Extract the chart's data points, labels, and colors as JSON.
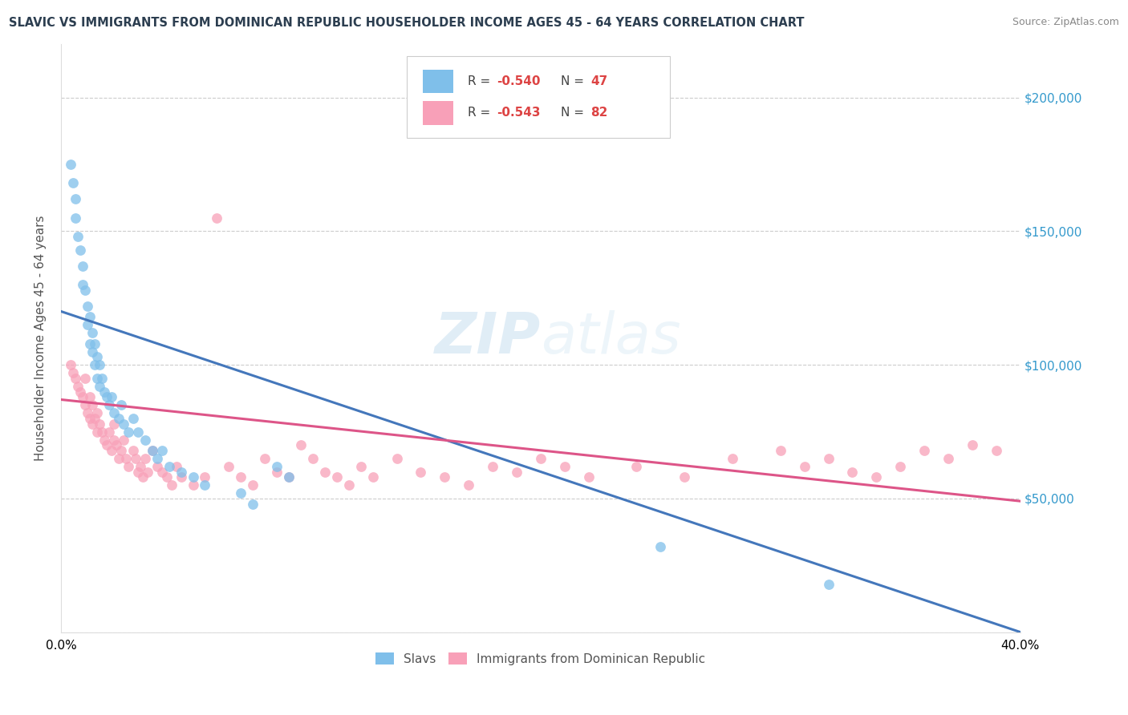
{
  "title": "SLAVIC VS IMMIGRANTS FROM DOMINICAN REPUBLIC HOUSEHOLDER INCOME AGES 45 - 64 YEARS CORRELATION CHART",
  "source": "Source: ZipAtlas.com",
  "ylabel": "Householder Income Ages 45 - 64 years",
  "xlim": [
    0.0,
    0.4
  ],
  "ylim": [
    0,
    220000
  ],
  "slavs_color": "#7fbfea",
  "slavs_line_color": "#4477bb",
  "dr_color": "#f8a0b8",
  "dr_line_color": "#dd5588",
  "legend_bottom_slavs": "Slavs",
  "legend_bottom_dr": "Immigrants from Dominican Republic",
  "watermark_zip": "ZIP",
  "watermark_atlas": "atlas",
  "slavs_x": [
    0.004,
    0.005,
    0.006,
    0.006,
    0.007,
    0.008,
    0.009,
    0.009,
    0.01,
    0.011,
    0.011,
    0.012,
    0.012,
    0.013,
    0.013,
    0.014,
    0.014,
    0.015,
    0.015,
    0.016,
    0.016,
    0.017,
    0.018,
    0.019,
    0.02,
    0.021,
    0.022,
    0.024,
    0.025,
    0.026,
    0.028,
    0.03,
    0.032,
    0.035,
    0.038,
    0.04,
    0.042,
    0.045,
    0.05,
    0.055,
    0.06,
    0.075,
    0.08,
    0.09,
    0.095,
    0.25,
    0.32
  ],
  "slavs_y": [
    175000,
    168000,
    162000,
    155000,
    148000,
    143000,
    137000,
    130000,
    128000,
    122000,
    115000,
    118000,
    108000,
    112000,
    105000,
    108000,
    100000,
    103000,
    95000,
    100000,
    92000,
    95000,
    90000,
    88000,
    85000,
    88000,
    82000,
    80000,
    85000,
    78000,
    75000,
    80000,
    75000,
    72000,
    68000,
    65000,
    68000,
    62000,
    60000,
    58000,
    55000,
    52000,
    48000,
    62000,
    58000,
    32000,
    18000
  ],
  "dr_x": [
    0.004,
    0.005,
    0.006,
    0.007,
    0.008,
    0.009,
    0.01,
    0.01,
    0.011,
    0.012,
    0.012,
    0.013,
    0.013,
    0.014,
    0.015,
    0.015,
    0.016,
    0.017,
    0.018,
    0.019,
    0.02,
    0.021,
    0.022,
    0.022,
    0.023,
    0.024,
    0.025,
    0.026,
    0.027,
    0.028,
    0.03,
    0.031,
    0.032,
    0.033,
    0.034,
    0.035,
    0.036,
    0.038,
    0.04,
    0.042,
    0.044,
    0.046,
    0.048,
    0.05,
    0.055,
    0.06,
    0.065,
    0.07,
    0.075,
    0.08,
    0.085,
    0.09,
    0.095,
    0.1,
    0.105,
    0.11,
    0.115,
    0.12,
    0.125,
    0.13,
    0.14,
    0.15,
    0.16,
    0.17,
    0.18,
    0.19,
    0.2,
    0.21,
    0.22,
    0.24,
    0.26,
    0.28,
    0.3,
    0.31,
    0.32,
    0.33,
    0.34,
    0.35,
    0.36,
    0.37,
    0.38,
    0.39
  ],
  "dr_y": [
    100000,
    97000,
    95000,
    92000,
    90000,
    88000,
    95000,
    85000,
    82000,
    88000,
    80000,
    85000,
    78000,
    80000,
    75000,
    82000,
    78000,
    75000,
    72000,
    70000,
    75000,
    68000,
    72000,
    78000,
    70000,
    65000,
    68000,
    72000,
    65000,
    62000,
    68000,
    65000,
    60000,
    62000,
    58000,
    65000,
    60000,
    68000,
    62000,
    60000,
    58000,
    55000,
    62000,
    58000,
    55000,
    58000,
    155000,
    62000,
    58000,
    55000,
    65000,
    60000,
    58000,
    70000,
    65000,
    60000,
    58000,
    55000,
    62000,
    58000,
    65000,
    60000,
    58000,
    55000,
    62000,
    60000,
    65000,
    62000,
    58000,
    62000,
    58000,
    65000,
    68000,
    62000,
    65000,
    60000,
    58000,
    62000,
    68000,
    65000,
    70000,
    68000
  ]
}
